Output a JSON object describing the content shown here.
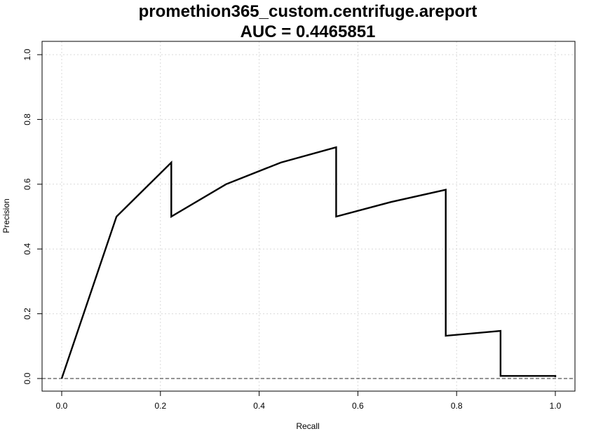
{
  "chart_data": {
    "type": "line",
    "title": "promethion365_custom.centrifuge.areport",
    "subtitle": "AUC = 0.4465851",
    "xlabel": "Recall",
    "ylabel": "Precision",
    "xlim": [
      0,
      1
    ],
    "ylim": [
      0,
      1
    ],
    "x_ticks": [
      "0.0",
      "0.2",
      "0.4",
      "0.6",
      "0.8",
      "1.0"
    ],
    "y_ticks": [
      "0.0",
      "0.2",
      "0.4",
      "0.6",
      "0.8",
      "1.0"
    ],
    "grid": true,
    "baseline_y": 0.0,
    "series": [
      {
        "x": [
          0.0,
          0.111,
          0.222,
          0.222,
          0.333,
          0.444,
          0.556,
          0.556,
          0.667,
          0.778,
          0.778,
          0.889,
          0.889,
          1.0,
          1.0
        ],
        "y": [
          0.0,
          0.5,
          0.667,
          0.5,
          0.6,
          0.667,
          0.714,
          0.5,
          0.545,
          0.583,
          0.132,
          0.147,
          0.008,
          0.008,
          0.004
        ],
        "color": "#000000"
      }
    ]
  }
}
